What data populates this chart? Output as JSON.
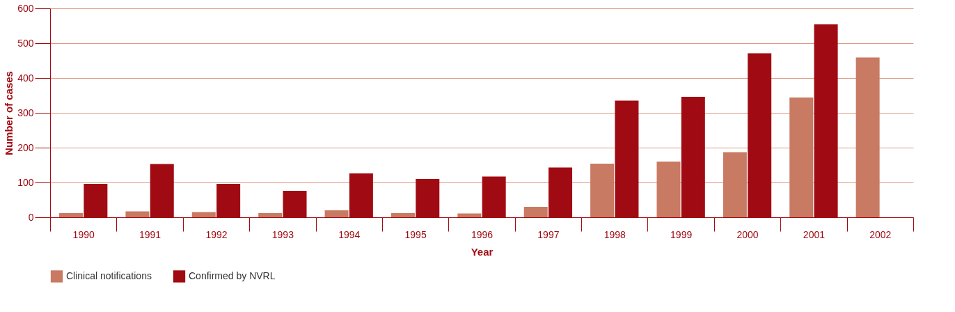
{
  "chart_data": {
    "type": "bar",
    "xlabel": "Year",
    "ylabel": "Number of cases",
    "categories": [
      "1990",
      "1991",
      "1992",
      "1993",
      "1994",
      "1995",
      "1996",
      "1997",
      "1998",
      "1999",
      "2000",
      "2001",
      "2002"
    ],
    "series": [
      {
        "name": "Clinical notifications",
        "color": "#c87a62",
        "values": [
          12,
          17,
          15,
          12,
          20,
          12,
          11,
          30,
          154,
          160,
          187,
          344,
          459
        ]
      },
      {
        "name": "Confirmed by NVRL",
        "color": "#a00a12",
        "values": [
          96,
          153,
          96,
          76,
          126,
          110,
          117,
          143,
          335,
          346,
          471,
          554,
          null
        ]
      }
    ],
    "ylim": [
      0,
      600
    ],
    "yticks": [
      0,
      100,
      200,
      300,
      400,
      500,
      600
    ],
    "grid": "y",
    "legend": "bottom"
  }
}
